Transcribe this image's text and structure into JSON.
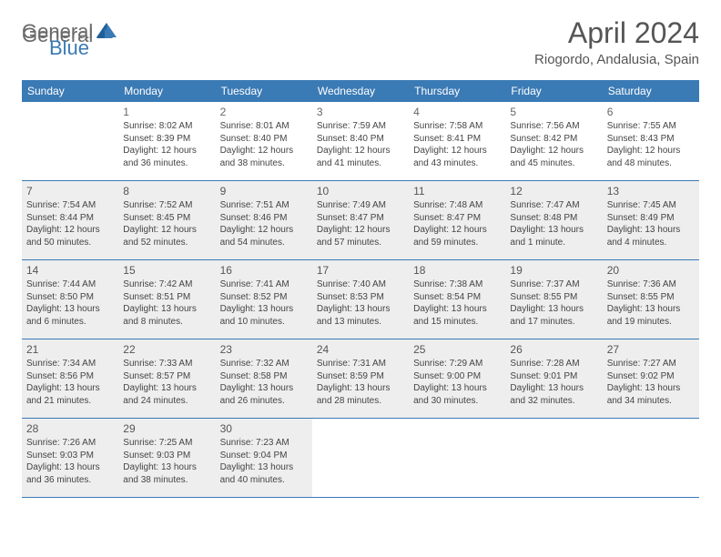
{
  "logo": {
    "part1": "General",
    "part2": "Blue"
  },
  "title": "April 2024",
  "location": "Riogordo, Andalusia, Spain",
  "colors": {
    "header_bg": "#3a7ab5",
    "shaded_bg": "#eeeeee",
    "border": "#3a7ab5",
    "text": "#444444",
    "title_text": "#555555",
    "logo_gray": "#6b6b6b"
  },
  "weekdays": [
    "Sunday",
    "Monday",
    "Tuesday",
    "Wednesday",
    "Thursday",
    "Friday",
    "Saturday"
  ],
  "weeks": [
    [
      {
        "num": "",
        "lines": [],
        "shaded": false
      },
      {
        "num": "1",
        "lines": [
          "Sunrise: 8:02 AM",
          "Sunset: 8:39 PM",
          "Daylight: 12 hours",
          "and 36 minutes."
        ],
        "shaded": false
      },
      {
        "num": "2",
        "lines": [
          "Sunrise: 8:01 AM",
          "Sunset: 8:40 PM",
          "Daylight: 12 hours",
          "and 38 minutes."
        ],
        "shaded": false
      },
      {
        "num": "3",
        "lines": [
          "Sunrise: 7:59 AM",
          "Sunset: 8:40 PM",
          "Daylight: 12 hours",
          "and 41 minutes."
        ],
        "shaded": false
      },
      {
        "num": "4",
        "lines": [
          "Sunrise: 7:58 AM",
          "Sunset: 8:41 PM",
          "Daylight: 12 hours",
          "and 43 minutes."
        ],
        "shaded": false
      },
      {
        "num": "5",
        "lines": [
          "Sunrise: 7:56 AM",
          "Sunset: 8:42 PM",
          "Daylight: 12 hours",
          "and 45 minutes."
        ],
        "shaded": false
      },
      {
        "num": "6",
        "lines": [
          "Sunrise: 7:55 AM",
          "Sunset: 8:43 PM",
          "Daylight: 12 hours",
          "and 48 minutes."
        ],
        "shaded": false
      }
    ],
    [
      {
        "num": "7",
        "lines": [
          "Sunrise: 7:54 AM",
          "Sunset: 8:44 PM",
          "Daylight: 12 hours",
          "and 50 minutes."
        ],
        "shaded": true
      },
      {
        "num": "8",
        "lines": [
          "Sunrise: 7:52 AM",
          "Sunset: 8:45 PM",
          "Daylight: 12 hours",
          "and 52 minutes."
        ],
        "shaded": true
      },
      {
        "num": "9",
        "lines": [
          "Sunrise: 7:51 AM",
          "Sunset: 8:46 PM",
          "Daylight: 12 hours",
          "and 54 minutes."
        ],
        "shaded": true
      },
      {
        "num": "10",
        "lines": [
          "Sunrise: 7:49 AM",
          "Sunset: 8:47 PM",
          "Daylight: 12 hours",
          "and 57 minutes."
        ],
        "shaded": true
      },
      {
        "num": "11",
        "lines": [
          "Sunrise: 7:48 AM",
          "Sunset: 8:47 PM",
          "Daylight: 12 hours",
          "and 59 minutes."
        ],
        "shaded": true
      },
      {
        "num": "12",
        "lines": [
          "Sunrise: 7:47 AM",
          "Sunset: 8:48 PM",
          "Daylight: 13 hours",
          "and 1 minute."
        ],
        "shaded": true
      },
      {
        "num": "13",
        "lines": [
          "Sunrise: 7:45 AM",
          "Sunset: 8:49 PM",
          "Daylight: 13 hours",
          "and 4 minutes."
        ],
        "shaded": true
      }
    ],
    [
      {
        "num": "14",
        "lines": [
          "Sunrise: 7:44 AM",
          "Sunset: 8:50 PM",
          "Daylight: 13 hours",
          "and 6 minutes."
        ],
        "shaded": true
      },
      {
        "num": "15",
        "lines": [
          "Sunrise: 7:42 AM",
          "Sunset: 8:51 PM",
          "Daylight: 13 hours",
          "and 8 minutes."
        ],
        "shaded": true
      },
      {
        "num": "16",
        "lines": [
          "Sunrise: 7:41 AM",
          "Sunset: 8:52 PM",
          "Daylight: 13 hours",
          "and 10 minutes."
        ],
        "shaded": true
      },
      {
        "num": "17",
        "lines": [
          "Sunrise: 7:40 AM",
          "Sunset: 8:53 PM",
          "Daylight: 13 hours",
          "and 13 minutes."
        ],
        "shaded": true
      },
      {
        "num": "18",
        "lines": [
          "Sunrise: 7:38 AM",
          "Sunset: 8:54 PM",
          "Daylight: 13 hours",
          "and 15 minutes."
        ],
        "shaded": true
      },
      {
        "num": "19",
        "lines": [
          "Sunrise: 7:37 AM",
          "Sunset: 8:55 PM",
          "Daylight: 13 hours",
          "and 17 minutes."
        ],
        "shaded": true
      },
      {
        "num": "20",
        "lines": [
          "Sunrise: 7:36 AM",
          "Sunset: 8:55 PM",
          "Daylight: 13 hours",
          "and 19 minutes."
        ],
        "shaded": true
      }
    ],
    [
      {
        "num": "21",
        "lines": [
          "Sunrise: 7:34 AM",
          "Sunset: 8:56 PM",
          "Daylight: 13 hours",
          "and 21 minutes."
        ],
        "shaded": true
      },
      {
        "num": "22",
        "lines": [
          "Sunrise: 7:33 AM",
          "Sunset: 8:57 PM",
          "Daylight: 13 hours",
          "and 24 minutes."
        ],
        "shaded": true
      },
      {
        "num": "23",
        "lines": [
          "Sunrise: 7:32 AM",
          "Sunset: 8:58 PM",
          "Daylight: 13 hours",
          "and 26 minutes."
        ],
        "shaded": true
      },
      {
        "num": "24",
        "lines": [
          "Sunrise: 7:31 AM",
          "Sunset: 8:59 PM",
          "Daylight: 13 hours",
          "and 28 minutes."
        ],
        "shaded": true
      },
      {
        "num": "25",
        "lines": [
          "Sunrise: 7:29 AM",
          "Sunset: 9:00 PM",
          "Daylight: 13 hours",
          "and 30 minutes."
        ],
        "shaded": true
      },
      {
        "num": "26",
        "lines": [
          "Sunrise: 7:28 AM",
          "Sunset: 9:01 PM",
          "Daylight: 13 hours",
          "and 32 minutes."
        ],
        "shaded": true
      },
      {
        "num": "27",
        "lines": [
          "Sunrise: 7:27 AM",
          "Sunset: 9:02 PM",
          "Daylight: 13 hours",
          "and 34 minutes."
        ],
        "shaded": true
      }
    ],
    [
      {
        "num": "28",
        "lines": [
          "Sunrise: 7:26 AM",
          "Sunset: 9:03 PM",
          "Daylight: 13 hours",
          "and 36 minutes."
        ],
        "shaded": true
      },
      {
        "num": "29",
        "lines": [
          "Sunrise: 7:25 AM",
          "Sunset: 9:03 PM",
          "Daylight: 13 hours",
          "and 38 minutes."
        ],
        "shaded": true
      },
      {
        "num": "30",
        "lines": [
          "Sunrise: 7:23 AM",
          "Sunset: 9:04 PM",
          "Daylight: 13 hours",
          "and 40 minutes."
        ],
        "shaded": true
      },
      {
        "num": "",
        "lines": [],
        "shaded": false
      },
      {
        "num": "",
        "lines": [],
        "shaded": false
      },
      {
        "num": "",
        "lines": [],
        "shaded": false
      },
      {
        "num": "",
        "lines": [],
        "shaded": false
      }
    ]
  ]
}
